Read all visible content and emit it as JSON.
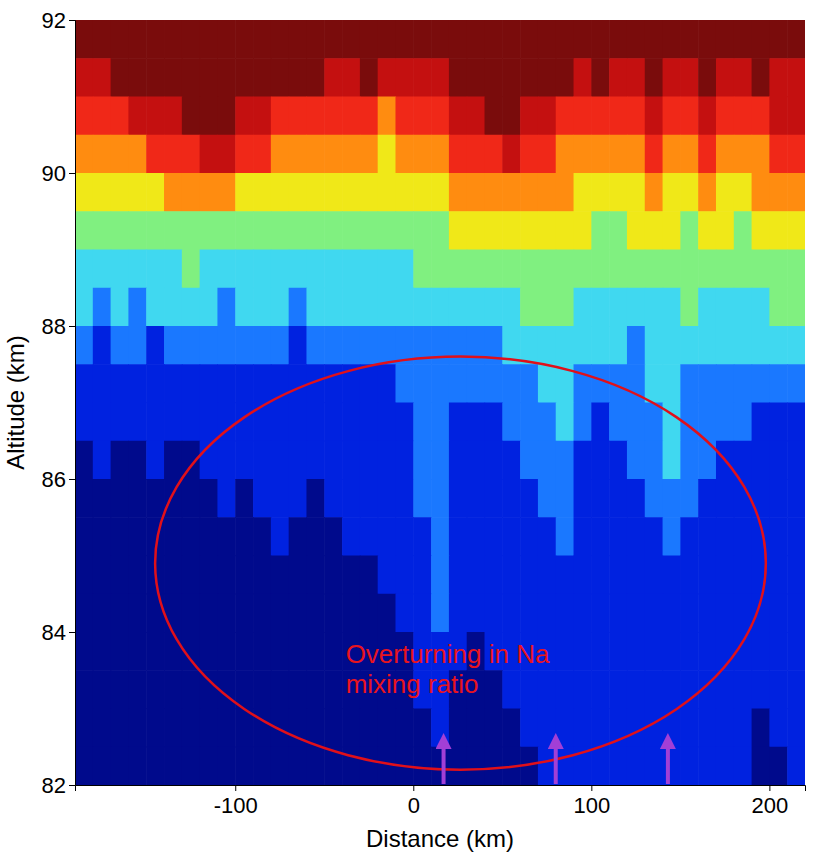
{
  "chart_data": {
    "type": "heatmap",
    "x_label": "Distance (km)",
    "y_label": "Altitude (km)",
    "xlim": [
      -190,
      220
    ],
    "ylim": [
      82,
      92
    ],
    "xticks": [
      -100,
      0,
      100,
      200
    ],
    "yticks": [
      82,
      84,
      86,
      88,
      90,
      92
    ],
    "color_range": [
      1,
      10
    ],
    "x": [
      -185,
      -175,
      -165,
      -155,
      -145,
      -135,
      -125,
      -115,
      -105,
      -95,
      -85,
      -75,
      -65,
      -55,
      -45,
      -35,
      -25,
      -15,
      -5,
      5,
      15,
      25,
      35,
      45,
      55,
      65,
      75,
      85,
      95,
      105,
      115,
      125,
      135,
      145,
      155,
      165,
      175,
      185,
      195,
      205,
      215
    ],
    "y": [
      91.75,
      91.25,
      90.75,
      90.25,
      89.75,
      89.25,
      88.75,
      88.25,
      87.75,
      87.25,
      86.75,
      86.25,
      85.75,
      85.25,
      84.75,
      84.25,
      83.75,
      83.25,
      82.75,
      82.25
    ],
    "z": [
      [
        10,
        10,
        10,
        10,
        10,
        10,
        10,
        10,
        10,
        10,
        10,
        10,
        10,
        10,
        10,
        10,
        10,
        10,
        10,
        10,
        10,
        10,
        10,
        10,
        10,
        10,
        10,
        10,
        10,
        10,
        10,
        10,
        10,
        10,
        10,
        10,
        10,
        10,
        10,
        10,
        10
      ],
      [
        9,
        9,
        10,
        10,
        10,
        10,
        10,
        10,
        10,
        10,
        10,
        10,
        10,
        10,
        9,
        9,
        10,
        9,
        9,
        9,
        9,
        10,
        10,
        10,
        10,
        10,
        10,
        10,
        9,
        10,
        9,
        9,
        10,
        9,
        9,
        10,
        9,
        9,
        10,
        9,
        9
      ],
      [
        8,
        8,
        8,
        9,
        9,
        9,
        10,
        10,
        10,
        9,
        9,
        8,
        8,
        8,
        8,
        8,
        8,
        7,
        8,
        8,
        8,
        9,
        9,
        10,
        10,
        9,
        9,
        8,
        8,
        8,
        8,
        8,
        9,
        8,
        8,
        9,
        8,
        8,
        8,
        9,
        9
      ],
      [
        7,
        7,
        7,
        7,
        8,
        8,
        8,
        9,
        9,
        8,
        8,
        7,
        7,
        7,
        7,
        7,
        7,
        6,
        7,
        7,
        7,
        8,
        8,
        8,
        9,
        8,
        8,
        7,
        7,
        7,
        7,
        7,
        8,
        7,
        7,
        8,
        7,
        7,
        7,
        8,
        8
      ],
      [
        6,
        6,
        6,
        6,
        6,
        7,
        7,
        7,
        7,
        6,
        6,
        6,
        6,
        6,
        6,
        6,
        6,
        6,
        6,
        6,
        6,
        7,
        7,
        7,
        7,
        7,
        7,
        7,
        6,
        6,
        6,
        6,
        7,
        6,
        6,
        7,
        6,
        6,
        7,
        7,
        7
      ],
      [
        5,
        5,
        5,
        5,
        5,
        5,
        5,
        5,
        5,
        5,
        5,
        5,
        5,
        5,
        5,
        5,
        5,
        5,
        5,
        5,
        5,
        6,
        6,
        6,
        6,
        6,
        6,
        6,
        6,
        5,
        5,
        6,
        6,
        6,
        5,
        6,
        6,
        5,
        6,
        6,
        6
      ],
      [
        4,
        4,
        4,
        4,
        4,
        4,
        5,
        4,
        4,
        4,
        4,
        4,
        4,
        4,
        4,
        4,
        4,
        4,
        4,
        5,
        5,
        5,
        5,
        5,
        5,
        5,
        5,
        5,
        5,
        5,
        5,
        5,
        5,
        5,
        5,
        5,
        5,
        5,
        5,
        5,
        5
      ],
      [
        4,
        3,
        4,
        3,
        4,
        4,
        4,
        4,
        3,
        4,
        4,
        4,
        3,
        4,
        4,
        4,
        4,
        4,
        4,
        4,
        4,
        4,
        4,
        4,
        4,
        5,
        5,
        5,
        4,
        4,
        4,
        4,
        4,
        4,
        5,
        4,
        4,
        4,
        4,
        5,
        5
      ],
      [
        3,
        2,
        3,
        3,
        2,
        3,
        3,
        3,
        3,
        3,
        3,
        3,
        2,
        3,
        3,
        3,
        3,
        3,
        3,
        3,
        3,
        3,
        3,
        3,
        4,
        4,
        4,
        4,
        4,
        4,
        4,
        3,
        4,
        4,
        4,
        4,
        4,
        4,
        4,
        4,
        4
      ],
      [
        2,
        2,
        2,
        2,
        2,
        2,
        2,
        2,
        2,
        2,
        2,
        2,
        2,
        2,
        2,
        2,
        2,
        2,
        3,
        3,
        3,
        3,
        3,
        3,
        3,
        3,
        4,
        4,
        3,
        3,
        3,
        3,
        4,
        4,
        3,
        3,
        3,
        3,
        3,
        3,
        3
      ],
      [
        2,
        2,
        2,
        2,
        2,
        2,
        2,
        2,
        2,
        2,
        2,
        2,
        2,
        2,
        2,
        2,
        2,
        2,
        2,
        3,
        3,
        2,
        2,
        2,
        3,
        3,
        3,
        4,
        3,
        2,
        3,
        3,
        3,
        4,
        3,
        3,
        3,
        3,
        2,
        2,
        2
      ],
      [
        1,
        2,
        1,
        1,
        2,
        1,
        1,
        2,
        2,
        2,
        2,
        2,
        2,
        2,
        2,
        2,
        2,
        2,
        2,
        3,
        3,
        2,
        2,
        2,
        2,
        3,
        3,
        3,
        2,
        2,
        2,
        3,
        3,
        4,
        3,
        3,
        2,
        2,
        2,
        2,
        2
      ],
      [
        1,
        1,
        1,
        1,
        1,
        1,
        1,
        1,
        2,
        1,
        2,
        2,
        2,
        1,
        2,
        2,
        2,
        2,
        2,
        3,
        3,
        2,
        2,
        2,
        2,
        2,
        3,
        3,
        2,
        2,
        2,
        2,
        3,
        3,
        3,
        2,
        2,
        2,
        2,
        2,
        2
      ],
      [
        1,
        1,
        1,
        1,
        1,
        1,
        1,
        1,
        1,
        1,
        1,
        2,
        1,
        1,
        1,
        2,
        2,
        2,
        2,
        2,
        3,
        2,
        2,
        2,
        2,
        2,
        2,
        3,
        2,
        2,
        2,
        2,
        2,
        3,
        2,
        2,
        2,
        2,
        2,
        2,
        2
      ],
      [
        1,
        1,
        1,
        1,
        1,
        1,
        1,
        1,
        1,
        1,
        1,
        1,
        1,
        1,
        1,
        1,
        1,
        2,
        2,
        2,
        3,
        2,
        2,
        2,
        2,
        2,
        2,
        2,
        2,
        2,
        2,
        2,
        2,
        2,
        2,
        2,
        2,
        2,
        2,
        2,
        2
      ],
      [
        1,
        1,
        1,
        1,
        1,
        1,
        1,
        1,
        1,
        1,
        1,
        1,
        1,
        1,
        1,
        1,
        1,
        1,
        2,
        2,
        3,
        2,
        2,
        2,
        2,
        2,
        2,
        2,
        2,
        2,
        2,
        2,
        2,
        2,
        2,
        2,
        2,
        2,
        2,
        2,
        2
      ],
      [
        1,
        1,
        1,
        1,
        1,
        1,
        1,
        1,
        1,
        1,
        1,
        1,
        1,
        1,
        1,
        1,
        1,
        1,
        1,
        2,
        2,
        2,
        1,
        2,
        2,
        2,
        2,
        2,
        2,
        2,
        2,
        2,
        2,
        2,
        2,
        2,
        2,
        2,
        2,
        2,
        2
      ],
      [
        1,
        1,
        1,
        1,
        1,
        1,
        1,
        1,
        1,
        1,
        1,
        1,
        1,
        1,
        1,
        1,
        1,
        1,
        1,
        2,
        2,
        1,
        1,
        1,
        2,
        2,
        2,
        2,
        2,
        2,
        2,
        2,
        2,
        2,
        2,
        2,
        2,
        2,
        2,
        2,
        2
      ],
      [
        1,
        1,
        1,
        1,
        1,
        1,
        1,
        1,
        1,
        1,
        1,
        1,
        1,
        1,
        1,
        1,
        1,
        1,
        1,
        1,
        2,
        1,
        1,
        1,
        1,
        2,
        2,
        2,
        2,
        2,
        2,
        2,
        2,
        2,
        2,
        2,
        2,
        2,
        1,
        2,
        2
      ],
      [
        1,
        1,
        1,
        1,
        1,
        1,
        1,
        1,
        1,
        1,
        1,
        1,
        1,
        1,
        1,
        1,
        1,
        1,
        1,
        1,
        1,
        1,
        1,
        1,
        1,
        1,
        2,
        2,
        2,
        2,
        2,
        2,
        2,
        2,
        2,
        2,
        2,
        2,
        1,
        1,
        2
      ]
    ],
    "annotations": [
      {
        "text": "Overturning in Na mixing ratio",
        "x": -38,
        "y": 83.6,
        "ellipse": {
          "x": [
            -145,
            198
          ],
          "y": [
            82.2,
            87.6
          ]
        }
      }
    ],
    "arrows": [
      17,
      80,
      143
    ]
  }
}
